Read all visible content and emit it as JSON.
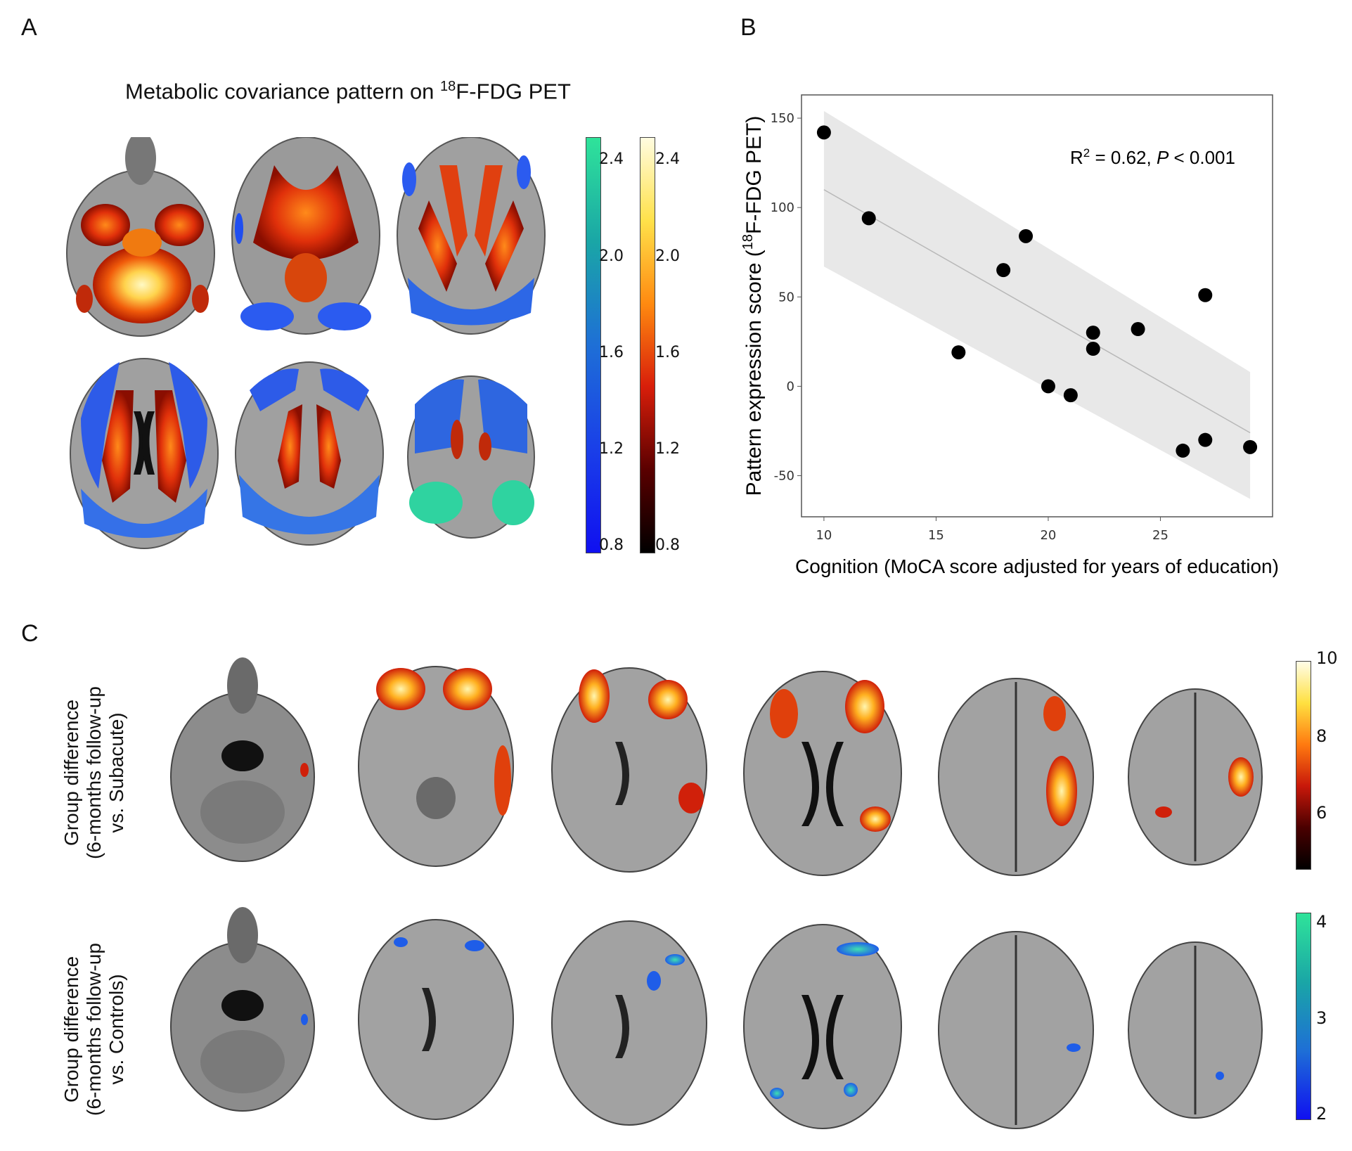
{
  "panels": {
    "a": "A",
    "b": "B",
    "c": "C"
  },
  "panel_a": {
    "title_pre": "Metabolic covariance pattern on ",
    "title_sup": "18",
    "title_post": "F-FDG PET",
    "cbar_blue_ticks": [
      "2.4",
      "2.0",
      "1.6",
      "1.2",
      "0.8"
    ],
    "cbar_hot_ticks": [
      "2.4",
      "2.0",
      "1.6",
      "1.2",
      "0.8"
    ]
  },
  "panel_c": {
    "row1_line1": "Group difference",
    "row1_line2": "(6-months follow-up",
    "row1_line3": "vs. Subacute)",
    "row2_line1": "Group difference",
    "row2_line2": "(6-months follow-up",
    "row2_line3": "vs. Controls)",
    "cbar_hot_ticks": [
      "10",
      "8",
      "6"
    ],
    "cbar_blue_ticks": [
      "4",
      "3",
      "2"
    ]
  },
  "chart_data": {
    "type": "scatter",
    "title": "",
    "xlabel": "Cognition (MoCA score adjusted for years of education)",
    "ylabel_pre": "Pattern expression score (",
    "ylabel_sup": "18",
    "ylabel_post": "F-FDG PET)",
    "annotation_pre": "R",
    "annotation_sup": "2",
    "annotation_mid": " = 0.62, ",
    "annotation_p": "P",
    "annotation_post": " < 0.001",
    "xlim": [
      9,
      30
    ],
    "ylim": [
      -73,
      163
    ],
    "xticks": [
      10,
      15,
      20,
      25
    ],
    "yticks": [
      150,
      100,
      50,
      0,
      -50
    ],
    "x": [
      10,
      12,
      16,
      18,
      19,
      20,
      21,
      22,
      22,
      24,
      26,
      27,
      27,
      29
    ],
    "y": [
      142,
      94,
      19,
      65,
      84,
      0,
      -5,
      30,
      21,
      32,
      -36,
      51,
      -30,
      -34
    ],
    "fit_line": {
      "x": [
        10,
        29
      ],
      "y": [
        110,
        -26
      ]
    },
    "ci_band": {
      "x": [
        10,
        29
      ],
      "upper": [
        154,
        8
      ],
      "lower": [
        67,
        -63
      ]
    },
    "grid": false,
    "colors": {
      "points": "#000000",
      "band": "#e8e8e8",
      "line": "#b8b8b8"
    }
  }
}
